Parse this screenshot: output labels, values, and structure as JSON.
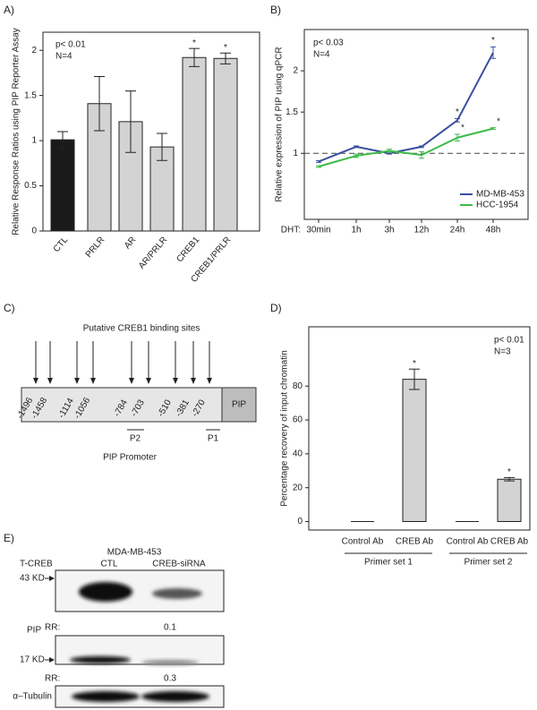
{
  "panel_labels": [
    "A)",
    "B)",
    "C)",
    "D)",
    "E)"
  ],
  "chart_data": [
    {
      "type": "bar",
      "ylabel": "Relative Response Ratios using PIP Reporter Assay",
      "annotations": [
        "p< 0.01",
        "N=4"
      ],
      "categories": [
        "CTL",
        "PRLR",
        "AR",
        "AR/PRLR",
        "CREB1",
        "CREB1/PRLR"
      ],
      "values": [
        1.01,
        1.41,
        1.21,
        0.93,
        1.92,
        1.91
      ],
      "errors": [
        0.09,
        0.3,
        0.34,
        0.15,
        0.1,
        0.06
      ],
      "significance": [
        null,
        null,
        null,
        null,
        "*",
        "*"
      ],
      "colors": [
        "#1a1a1a",
        "#d3d3d3",
        "#d3d3d3",
        "#d3d3d3",
        "#d3d3d3",
        "#d3d3d3"
      ],
      "ylim": [
        0,
        2.2
      ],
      "yticks": [
        0,
        0.5,
        1,
        1.5,
        2
      ]
    },
    {
      "type": "line",
      "ylabel": "Relative expression of PIP using qPCR",
      "annotations": [
        "p< 0.03",
        "N=4"
      ],
      "xlabel": "DHT:",
      "categories": [
        "30min",
        "1h",
        "3h",
        "12h",
        "24h",
        "48h"
      ],
      "series": [
        {
          "name": "MD-MB-453",
          "color": "#3a4fa0",
          "values": [
            0.9,
            1.08,
            1.0,
            1.08,
            1.4,
            2.22
          ],
          "errors": [
            0.01,
            0.01,
            0.01,
            0.01,
            0.02,
            0.07
          ],
          "significance": [
            null,
            null,
            null,
            null,
            "*",
            "*"
          ]
        },
        {
          "name": "HCC-1954",
          "color": "#3dbb4a",
          "values": [
            0.84,
            0.97,
            1.03,
            0.98,
            1.19,
            1.3
          ],
          "errors": [
            0.01,
            0.02,
            0.02,
            0.04,
            0.04,
            0.01
          ],
          "significance": [
            null,
            null,
            null,
            null,
            "*",
            "*"
          ]
        }
      ],
      "reference_line": 1,
      "legend": "lower-right",
      "ylim": [
        0.2,
        2.5
      ],
      "yticks": [
        1,
        1.5,
        2
      ]
    },
    {
      "type": "bar",
      "ylabel": "Percentage recovery of input chromatin",
      "annotations": [
        "p< 0.01",
        "N=3"
      ],
      "categories": [
        "Control Ab",
        "CREB Ab",
        "Control Ab",
        "CREB Ab"
      ],
      "values": [
        0,
        84,
        0,
        25
      ],
      "errors": [
        null,
        6,
        null,
        1
      ],
      "significance": [
        null,
        "*",
        null,
        "*"
      ],
      "groups": [
        "Primer set 1",
        "Primer set 2"
      ],
      "color": "#d3d3d3",
      "ylim": [
        -5,
        115
      ],
      "yticks": [
        0,
        20,
        40,
        60,
        80
      ]
    }
  ],
  "promoter_diagram": {
    "title": "Putative CREB1 binding sites",
    "sites": [
      "-1496",
      "-1458",
      "-1114",
      "-1056",
      "-784",
      "-703",
      "-510",
      "-381",
      "-270"
    ],
    "gene": "PIP",
    "primers": [
      "P2",
      "P1"
    ],
    "caption": "PIP Promoter"
  },
  "western_blot": {
    "title": "MDA-MB-453",
    "lanes": [
      "CTL",
      "CREB-siRNA"
    ],
    "rr_label": "RR:",
    "blots": [
      {
        "target": "T-CREB",
        "size": "43 KD",
        "rr": 0.1
      },
      {
        "target": "PIP",
        "size": "17 KD",
        "rr": 0.3
      },
      {
        "target": "α–Tubulin"
      }
    ]
  }
}
